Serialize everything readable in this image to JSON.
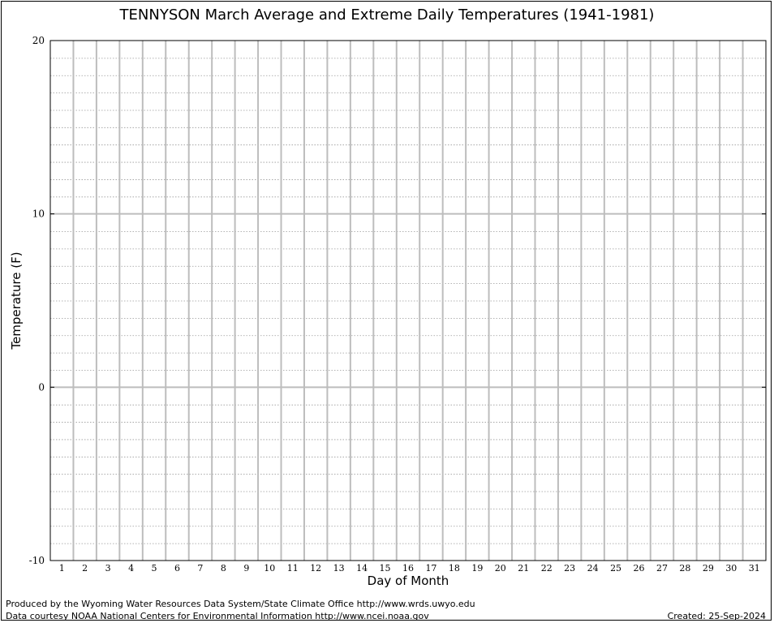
{
  "chart_data": {
    "type": "line",
    "title": "TENNYSON March Average and Extreme Daily Temperatures (1941-1981)",
    "xlabel": "Day of Month",
    "ylabel": "Temperature (F)",
    "x_ticks": [
      "1",
      "2",
      "3",
      "4",
      "5",
      "6",
      "7",
      "8",
      "9",
      "10",
      "11",
      "12",
      "13",
      "14",
      "15",
      "16",
      "17",
      "18",
      "19",
      "20",
      "21",
      "22",
      "23",
      "24",
      "25",
      "26",
      "27",
      "28",
      "29",
      "30",
      "31"
    ],
    "y_ticks": [
      "20",
      "10",
      "0",
      "-10"
    ],
    "xlim": [
      1,
      31
    ],
    "ylim": [
      -10,
      20
    ],
    "grid": true,
    "series": []
  },
  "footer": {
    "line1": "Produced by the Wyoming Water Resources Data System/State Climate Office http://www.wrds.uwyo.edu",
    "line2": "Data courtesy NOAA National Centers for Environmental Information http://www.ncei.noaa.gov",
    "created": "Created:  25-Sep-2024"
  }
}
